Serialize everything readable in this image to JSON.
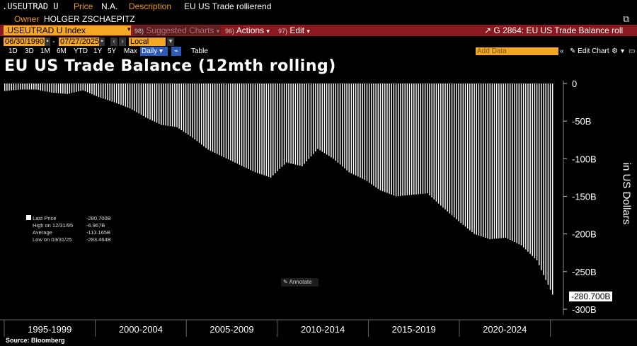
{
  "header": {
    "ticker": ".USEUTRAD U",
    "price_label": "Price",
    "price_value": "N.A.",
    "description_label": "Description",
    "description_value": "EU US Trade rollierend",
    "owner_label": "Owner",
    "owner_value": "HOLGER ZSCHAEPITZ"
  },
  "toolbar": {
    "security": ".USEUTRAD U Index",
    "suggested": "Suggested Charts",
    "suggested_num": "98)",
    "actions": "Actions",
    "actions_num": "96)",
    "edit": "Edit",
    "edit_num": "97)",
    "chart_id": "G 2864: EU US Trade Balance roll"
  },
  "range": {
    "start": "06/30/1990",
    "end": "07/27/2025",
    "currency": "Local CCY"
  },
  "periods": [
    "1D",
    "3D",
    "1M",
    "6M",
    "YTD",
    "1Y",
    "5Y",
    "Max"
  ],
  "frequency": "Daily",
  "table_label": "Table",
  "add_data_placeholder": "Add Data",
  "edit_chart_label": "Edit Chart",
  "annotate_label": "Annotate",
  "legend": {
    "last_price_label": "Last Price",
    "last_price_value": "-280.700B",
    "high_label": "High on 12/31/95",
    "high_value": "-6.967B",
    "average_label": "Average",
    "average_value": "-113.165B",
    "low_label": "Low on 03/31/25",
    "low_value": "-283.464B"
  },
  "source": "Source: Bloomberg",
  "colors": {
    "accent": "#f5a623",
    "menu_bar": "#8a1a1f",
    "bars": "#ffffff"
  },
  "chart_data": {
    "type": "bar",
    "title": "EU US Trade Balance (12mth rolling)",
    "ylabel": "in US Dollars",
    "ylim": [
      -300,
      0
    ],
    "yticks": [
      0,
      -50,
      -100,
      -150,
      -200,
      -250,
      -300
    ],
    "ytick_labels": [
      "0",
      "-50B",
      "-100B",
      "-150B",
      "-200B",
      "-250B",
      "-300B"
    ],
    "x_period_labels": [
      "1995-1999",
      "2000-2004",
      "2005-2009",
      "2010-2014",
      "2015-2019",
      "2020-2024"
    ],
    "last_value_label": "-280.700B",
    "unit": "B USD",
    "x": [
      "1990",
      "1991",
      "1992",
      "1993",
      "1994",
      "1995",
      "1996",
      "1997",
      "1998",
      "1999",
      "2000",
      "2001",
      "2002",
      "2003",
      "2004",
      "2005",
      "2006",
      "2007",
      "2008",
      "2009",
      "2010",
      "2011",
      "2012",
      "2013",
      "2014",
      "2015",
      "2016",
      "2017",
      "2018",
      "2019",
      "2020",
      "2021",
      "2022",
      "2023",
      "2024",
      "2025"
    ],
    "values": [
      -10,
      -8,
      -8,
      -12,
      -14,
      -9,
      -18,
      -25,
      -33,
      -45,
      -55,
      -58,
      -72,
      -88,
      -98,
      -108,
      -118,
      -125,
      -105,
      -110,
      -87,
      -100,
      -118,
      -128,
      -142,
      -150,
      -148,
      -146,
      -165,
      -183,
      -200,
      -207,
      -205,
      -215,
      -235,
      -280.7
    ]
  }
}
